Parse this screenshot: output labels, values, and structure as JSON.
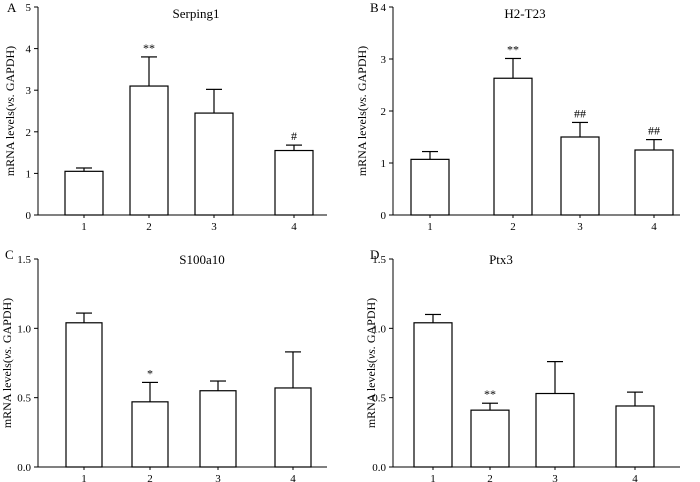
{
  "figure_description": "mRNA levels bar charts",
  "chart_data": [
    {
      "panel": "A",
      "type": "bar",
      "title": "Serping1",
      "ylabel_main": "mRNA levels(",
      "ylabel_italic": "vs.",
      "ylabel_tail": " GAPDH)",
      "ylim": [
        0,
        5
      ],
      "yticks": [
        0,
        1,
        2,
        3,
        4,
        5
      ],
      "ytick_labels": [
        "0",
        "1",
        "2",
        "3",
        "4",
        "5"
      ],
      "categories": [
        "1",
        "2",
        "3",
        "4"
      ],
      "values": [
        1.05,
        3.1,
        2.45,
        1.55
      ],
      "errors": [
        0.08,
        0.7,
        0.57,
        0.13
      ],
      "annotations": [
        "",
        "**",
        "",
        "#"
      ]
    },
    {
      "panel": "B",
      "type": "bar",
      "title": "H2-T23",
      "ylabel_main": "mRNA levels(",
      "ylabel_italic": "vs.",
      "ylabel_tail": " GAPDH)",
      "ylim": [
        0,
        4
      ],
      "yticks": [
        0,
        1,
        2,
        3,
        4
      ],
      "ytick_labels": [
        "0",
        "1",
        "2",
        "3",
        "4"
      ],
      "categories": [
        "1",
        "2",
        "3",
        "4"
      ],
      "values": [
        1.07,
        2.63,
        1.5,
        1.25
      ],
      "errors": [
        0.15,
        0.38,
        0.28,
        0.2
      ],
      "annotations": [
        "",
        "**",
        "##",
        "##"
      ]
    },
    {
      "panel": "C",
      "type": "bar",
      "title": "S100a10",
      "ylabel_main": "mRNA levels(",
      "ylabel_italic": "vs.",
      "ylabel_tail": " GAPDH)",
      "ylim": [
        0,
        1.5
      ],
      "yticks": [
        0,
        0.5,
        1.0,
        1.5
      ],
      "ytick_labels": [
        "0.0",
        "0.5",
        "1.0",
        "1.5"
      ],
      "categories": [
        "1",
        "2",
        "3",
        "4"
      ],
      "values": [
        1.04,
        0.47,
        0.55,
        0.57
      ],
      "errors": [
        0.07,
        0.14,
        0.07,
        0.26
      ],
      "annotations": [
        "",
        "*",
        "",
        ""
      ]
    },
    {
      "panel": "D",
      "type": "bar",
      "title": "Ptx3",
      "ylabel_main": "mRNA levels(",
      "ylabel_italic": "vs.",
      "ylabel_tail": " GAPDH)",
      "ylim": [
        0,
        1.5
      ],
      "yticks": [
        0,
        0.5,
        1.0,
        1.5
      ],
      "ytick_labels": [
        "0.0",
        "0.5",
        "1.0",
        "1.5"
      ],
      "categories": [
        "1",
        "2",
        "3",
        "4"
      ],
      "values": [
        1.04,
        0.41,
        0.53,
        0.44
      ],
      "errors": [
        0.06,
        0.05,
        0.23,
        0.1
      ],
      "annotations": [
        "",
        "**",
        "",
        ""
      ]
    }
  ]
}
